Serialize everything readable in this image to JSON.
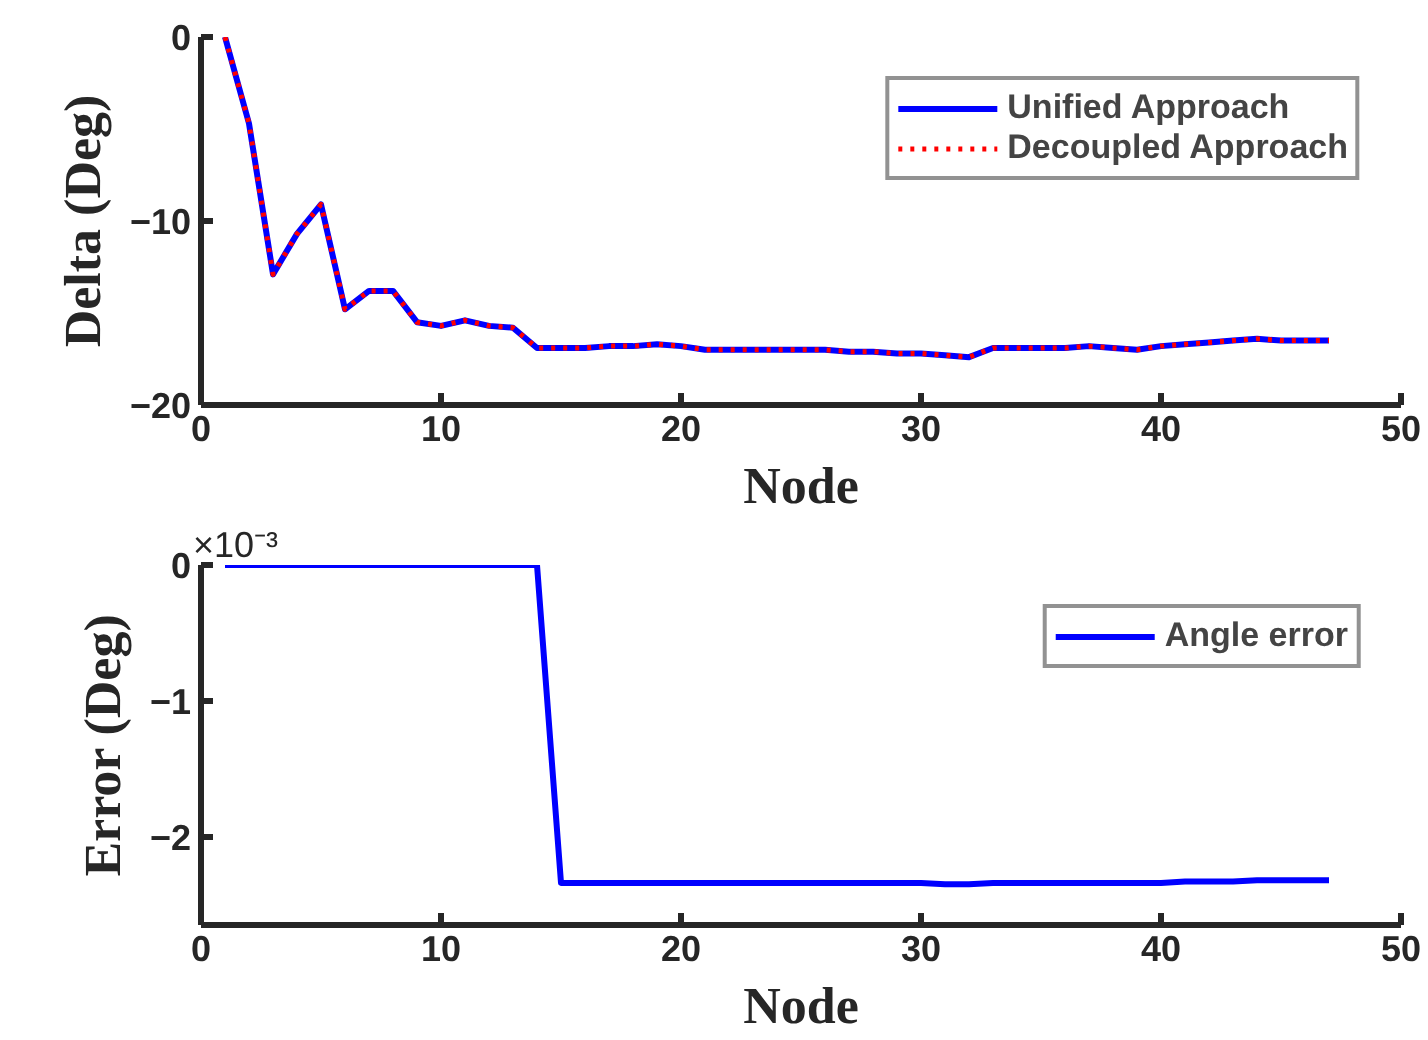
{
  "chart_data": [
    {
      "type": "line",
      "xlabel": "Node",
      "ylabel": "Delta (Deg)",
      "xlim": [
        0,
        50
      ],
      "ylim": [
        -20,
        0
      ],
      "xticks": [
        0,
        10,
        20,
        30,
        40,
        50
      ],
      "yticks": [
        -20,
        -10,
        0
      ],
      "grid": false,
      "legend": "top right",
      "x": [
        1,
        2,
        3,
        4,
        5,
        6,
        7,
        8,
        9,
        10,
        11,
        12,
        13,
        14,
        15,
        16,
        17,
        18,
        19,
        20,
        21,
        22,
        23,
        24,
        25,
        26,
        27,
        28,
        29,
        30,
        31,
        32,
        33,
        34,
        35,
        36,
        37,
        38,
        39,
        40,
        41,
        42,
        43,
        44,
        45,
        46,
        47
      ],
      "series": [
        {
          "name": "Unified Approach",
          "color": "#0000ff",
          "line_style": "solid",
          "values": [
            0,
            -4.7,
            -12.9,
            -10.7,
            -9.1,
            -14.8,
            -13.8,
            -13.8,
            -15.5,
            -15.7,
            -15.4,
            -15.7,
            -15.8,
            -16.9,
            -16.9,
            -16.9,
            -16.8,
            -16.8,
            -16.7,
            -16.8,
            -17.0,
            -17.0,
            -17.0,
            -17.0,
            -17.0,
            -17.0,
            -17.1,
            -17.1,
            -17.2,
            -17.2,
            -17.3,
            -17.4,
            -16.9,
            -16.9,
            -16.9,
            -16.9,
            -16.8,
            -16.9,
            -17.0,
            -16.8,
            -16.7,
            -16.6,
            -16.5,
            -16.4,
            -16.5,
            -16.5,
            -16.5
          ]
        },
        {
          "name": "Decoupled Approach",
          "color": "#ff0000",
          "line_style": "dotted",
          "values": [
            0,
            -4.7,
            -12.9,
            -10.7,
            -9.1,
            -14.8,
            -13.8,
            -13.8,
            -15.5,
            -15.7,
            -15.4,
            -15.7,
            -15.8,
            -16.9,
            -16.9,
            -16.9,
            -16.8,
            -16.8,
            -16.7,
            -16.8,
            -17.0,
            -17.0,
            -17.0,
            -17.0,
            -17.0,
            -17.0,
            -17.1,
            -17.1,
            -17.2,
            -17.2,
            -17.3,
            -17.4,
            -16.9,
            -16.9,
            -16.9,
            -16.9,
            -16.8,
            -16.9,
            -17.0,
            -16.8,
            -16.7,
            -16.6,
            -16.5,
            -16.4,
            -16.5,
            -16.5,
            -16.5
          ]
        }
      ]
    },
    {
      "type": "line",
      "xlabel": "Node",
      "ylabel": "Error (Deg)",
      "annotations": [
        "×10⁻³"
      ],
      "xlim": [
        0,
        50
      ],
      "ylim": [
        -2.65,
        0
      ],
      "xticks": [
        0,
        10,
        20,
        30,
        40,
        50
      ],
      "yticks": [
        -2,
        -1,
        0
      ],
      "grid": false,
      "legend": "top right",
      "x": [
        1,
        2,
        3,
        4,
        5,
        6,
        7,
        8,
        9,
        10,
        11,
        12,
        13,
        14,
        15,
        16,
        17,
        18,
        19,
        20,
        21,
        22,
        23,
        24,
        25,
        26,
        27,
        28,
        29,
        30,
        31,
        32,
        33,
        34,
        35,
        36,
        37,
        38,
        39,
        40,
        41,
        42,
        43,
        44,
        45,
        46,
        47
      ],
      "series": [
        {
          "name": "Angle error",
          "color": "#0000ff",
          "line_style": "solid",
          "values": [
            0,
            0,
            0,
            0,
            0,
            0,
            0,
            0,
            0,
            0,
            0,
            0,
            0,
            0,
            -2.34,
            -2.34,
            -2.34,
            -2.34,
            -2.34,
            -2.34,
            -2.34,
            -2.34,
            -2.34,
            -2.34,
            -2.34,
            -2.34,
            -2.34,
            -2.34,
            -2.34,
            -2.34,
            -2.35,
            -2.35,
            -2.34,
            -2.34,
            -2.34,
            -2.34,
            -2.34,
            -2.34,
            -2.34,
            -2.34,
            -2.33,
            -2.33,
            -2.33,
            -2.32,
            -2.32,
            -2.32,
            -2.32
          ]
        }
      ]
    }
  ]
}
